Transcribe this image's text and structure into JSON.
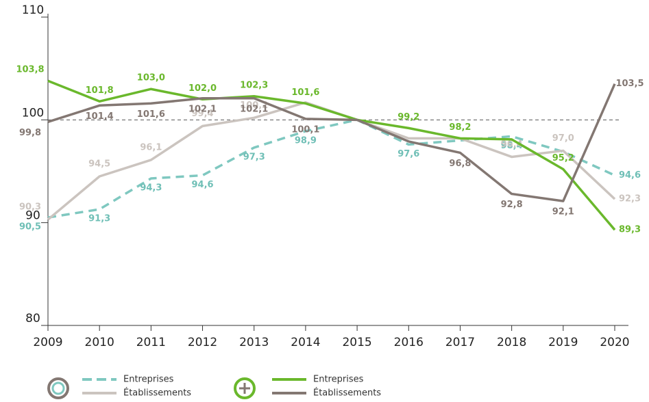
{
  "chart_data": {
    "type": "line",
    "categories": [
      "2009",
      "2010",
      "2011",
      "2012",
      "2013",
      "2014",
      "2015",
      "2016",
      "2017",
      "2018",
      "2019",
      "2020"
    ],
    "ylim": [
      80,
      110
    ],
    "yticks": [
      80,
      90,
      100,
      110
    ],
    "reference_line": 100,
    "series": [
      {
        "name": "Entreprises",
        "color": "#7fc8c0",
        "dashed": true,
        "values": [
          90.5,
          91.3,
          94.3,
          94.6,
          97.3,
          98.9,
          100,
          97.6,
          98.0,
          98.4,
          96.9,
          94.6
        ],
        "value_labels": [
          "90,5",
          "91,3",
          "94,3",
          "94,6",
          "97,3",
          "98,9",
          null,
          "97,6",
          null,
          "98,4",
          null,
          "94,6"
        ]
      },
      {
        "name": "Établissements",
        "color": "#cbc4bf",
        "dashed": false,
        "values": [
          90.3,
          94.5,
          96.1,
          99.4,
          100.2,
          101.7,
          100,
          98.2,
          98.2,
          96.4,
          97.0,
          92.3
        ],
        "value_labels": [
          "90,3",
          "94,5",
          "96,1",
          "99,4",
          "100,2",
          null,
          null,
          null,
          null,
          "96,4",
          "97,0",
          "92,3"
        ]
      },
      {
        "name": "Entreprises",
        "color": "#6ab82c",
        "dashed": false,
        "values": [
          103.8,
          101.8,
          103.0,
          102.0,
          102.3,
          101.6,
          100,
          99.2,
          98.2,
          98.1,
          95.2,
          89.3
        ],
        "value_labels": [
          "103,8",
          "101,8",
          "103,0",
          "102,0",
          "102,3",
          "101,6",
          null,
          "99,2",
          "98,2",
          null,
          "95,2",
          "89,3"
        ]
      },
      {
        "name": "Établissements",
        "color": "#837772",
        "dashed": false,
        "values": [
          99.8,
          101.4,
          101.6,
          102.1,
          102.1,
          100.1,
          100,
          97.9,
          96.8,
          92.8,
          92.1,
          103.5
        ],
        "value_labels": [
          "99,8",
          "101,4",
          "101,6",
          "102,1",
          "102,1",
          "100,1",
          null,
          null,
          "96,8",
          "92,8",
          "92,1",
          "103,5"
        ]
      }
    ]
  }
}
